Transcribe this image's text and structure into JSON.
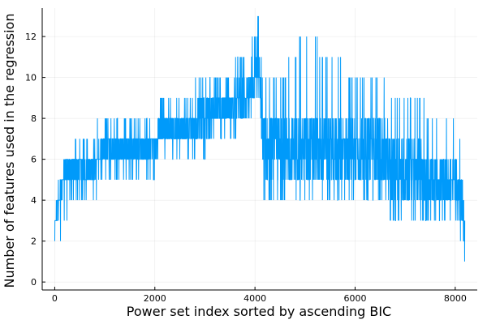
{
  "chart_data": {
    "type": "line",
    "xlabel": "Power set index sorted by ascending BIC",
    "ylabel": "Number of features used in the regression",
    "xlim": [
      -250,
      8440
    ],
    "ylim": [
      -0.39,
      13.39
    ],
    "xticks": [
      0,
      2000,
      4000,
      6000,
      8000
    ],
    "yticks": [
      0,
      2,
      4,
      6,
      8,
      10,
      12
    ],
    "grid": true,
    "legend": "none",
    "series_color": "#009AFA",
    "n_points": 8191,
    "band_profile": {
      "x": [
        0,
        50,
        200,
        400,
        700,
        1000,
        1400,
        1800,
        2200,
        2600,
        3000,
        3400,
        3800,
        4000,
        4090,
        4150,
        4500,
        5000,
        5500,
        6000,
        6500,
        6800,
        7200,
        7600,
        8000,
        8150,
        8191
      ],
      "min": [
        1,
        2,
        3,
        4,
        4,
        5,
        5,
        5,
        6,
        6,
        6,
        7,
        7,
        9,
        9,
        4,
        4,
        4,
        4,
        4,
        4,
        3,
        3,
        3,
        3,
        2,
        0
      ],
      "max": [
        3,
        5,
        6,
        7,
        7,
        8,
        8,
        8,
        9,
        9,
        10,
        10,
        11,
        12,
        13,
        10,
        10,
        12,
        11,
        10,
        10,
        9,
        9,
        8,
        8,
        6,
        4
      ],
      "low_typical": [
        2,
        3,
        5,
        5,
        5,
        6,
        6,
        6,
        7,
        7,
        7,
        8,
        8,
        9,
        9,
        5,
        5,
        5,
        5,
        5,
        5,
        4,
        4,
        4,
        4,
        3,
        1
      ],
      "high_typical": [
        3,
        4,
        6,
        6,
        6,
        7,
        7,
        7,
        8,
        8,
        9,
        9,
        10,
        11,
        11,
        8,
        8,
        8,
        8,
        8,
        8,
        7,
        7,
        6,
        6,
        5,
        3
      ]
    }
  }
}
